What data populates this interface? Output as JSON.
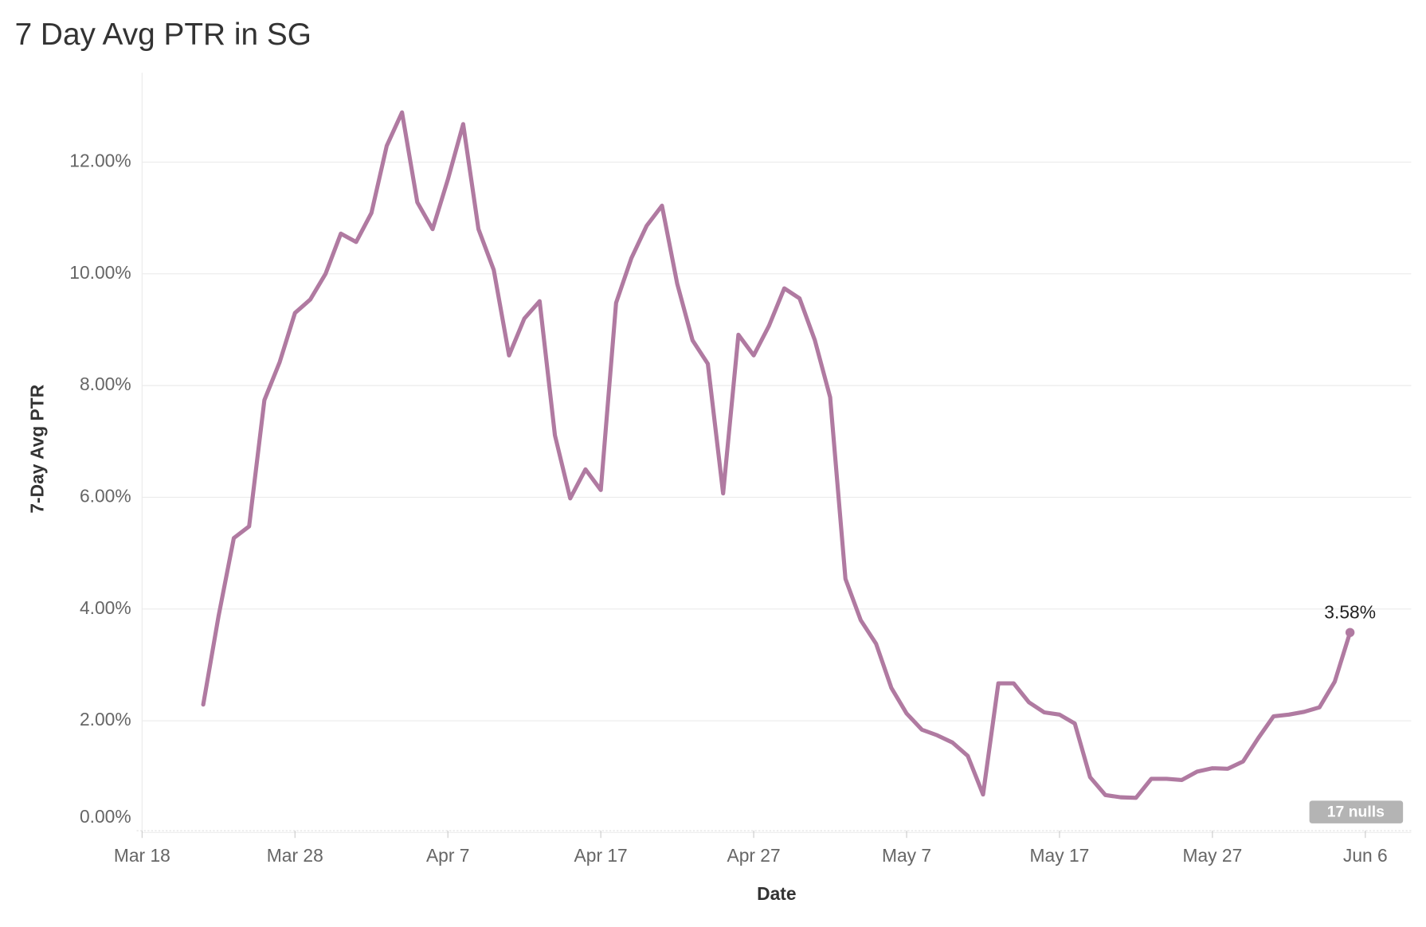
{
  "chart_data": {
    "type": "line",
    "title": "7 Day Avg PTR in SG",
    "x_label": "Date",
    "y_label": "7-Day Avg PTR",
    "color": "#b07aa1",
    "grid": true,
    "x": [
      "Mar 22",
      "Mar 23",
      "Mar 24",
      "Mar 25",
      "Mar 26",
      "Mar 27",
      "Mar 28",
      "Mar 29",
      "Mar 30",
      "Mar 31",
      "Apr 1",
      "Apr 2",
      "Apr 3",
      "Apr 4",
      "Apr 5",
      "Apr 6",
      "Apr 7",
      "Apr 8",
      "Apr 9",
      "Apr 10",
      "Apr 11",
      "Apr 12",
      "Apr 13",
      "Apr 14",
      "Apr 15",
      "Apr 16",
      "Apr 17",
      "Apr 18",
      "Apr 19",
      "Apr 20",
      "Apr 21",
      "Apr 22",
      "Apr 23",
      "Apr 24",
      "Apr 25",
      "Apr 26",
      "Apr 27",
      "Apr 28",
      "Apr 29",
      "Apr 30",
      "May 1",
      "May 2",
      "May 3",
      "May 4",
      "May 5",
      "May 6",
      "May 7",
      "May 8",
      "May 9",
      "May 10",
      "May 11",
      "May 12",
      "May 13",
      "May 14",
      "May 15",
      "May 16",
      "May 17",
      "May 18",
      "May 19",
      "May 20",
      "May 21",
      "May 22",
      "May 23",
      "May 24",
      "May 25",
      "May 26",
      "May 27",
      "May 28",
      "May 29",
      "May 30",
      "May 31",
      "Jun 1",
      "Jun 2",
      "Jun 3",
      "Jun 4",
      "Jun 5"
    ],
    "values": [
      2.29,
      3.87,
      5.27,
      5.48,
      7.74,
      8.42,
      9.3,
      9.54,
      10.0,
      10.72,
      10.57,
      11.09,
      12.29,
      12.89,
      11.28,
      10.8,
      11.69,
      12.68,
      10.8,
      10.07,
      8.54,
      9.2,
      9.51,
      7.11,
      5.98,
      6.5,
      6.13,
      9.48,
      10.28,
      10.86,
      11.22,
      9.82,
      8.81,
      8.39,
      6.07,
      8.91,
      8.54,
      9.07,
      9.74,
      9.56,
      8.81,
      7.79,
      4.54,
      3.8,
      3.38,
      2.59,
      2.13,
      1.84,
      1.74,
      1.61,
      1.37,
      0.68,
      2.67,
      2.67,
      2.33,
      2.15,
      2.11,
      1.95,
      0.99,
      0.67,
      0.63,
      0.62,
      0.96,
      0.96,
      0.94,
      1.09,
      1.15,
      1.14,
      1.27,
      1.69,
      2.08,
      2.11,
      2.16,
      2.24,
      2.7,
      3.58
    ],
    "value_labels": [
      null,
      null,
      null,
      null,
      null,
      null,
      null,
      null,
      null,
      null,
      null,
      null,
      null,
      null,
      null,
      null,
      null,
      null,
      null,
      null,
      null,
      null,
      null,
      null,
      null,
      null,
      null,
      null,
      null,
      null,
      null,
      null,
      null,
      null,
      null,
      null,
      null,
      null,
      null,
      null,
      null,
      null,
      null,
      null,
      null,
      null,
      null,
      null,
      null,
      null,
      null,
      null,
      null,
      null,
      null,
      null,
      null,
      null,
      null,
      null,
      null,
      null,
      null,
      null,
      null,
      null,
      null,
      null,
      null,
      null,
      null,
      null,
      null,
      null,
      null,
      "3.58%"
    ],
    "xlim": [
      "Mar 18",
      "Jun 9"
    ],
    "xticks": [
      "Mar 18",
      "Mar 28",
      "Apr 7",
      "Apr 17",
      "Apr 27",
      "May 7",
      "May 17",
      "May 27",
      "Jun 6"
    ],
    "ylim": [
      0,
      13.6
    ],
    "yticks": [
      {
        "value": 0,
        "label": "0.00%"
      },
      {
        "value": 2,
        "label": "2.00%"
      },
      {
        "value": 4,
        "label": "4.00%"
      },
      {
        "value": 6,
        "label": "6.00%"
      },
      {
        "value": 8,
        "label": "8.00%"
      },
      {
        "value": 10,
        "label": "10.00%"
      },
      {
        "value": 12,
        "label": "12.00%"
      }
    ],
    "nulls_indicator": "17 nulls"
  }
}
